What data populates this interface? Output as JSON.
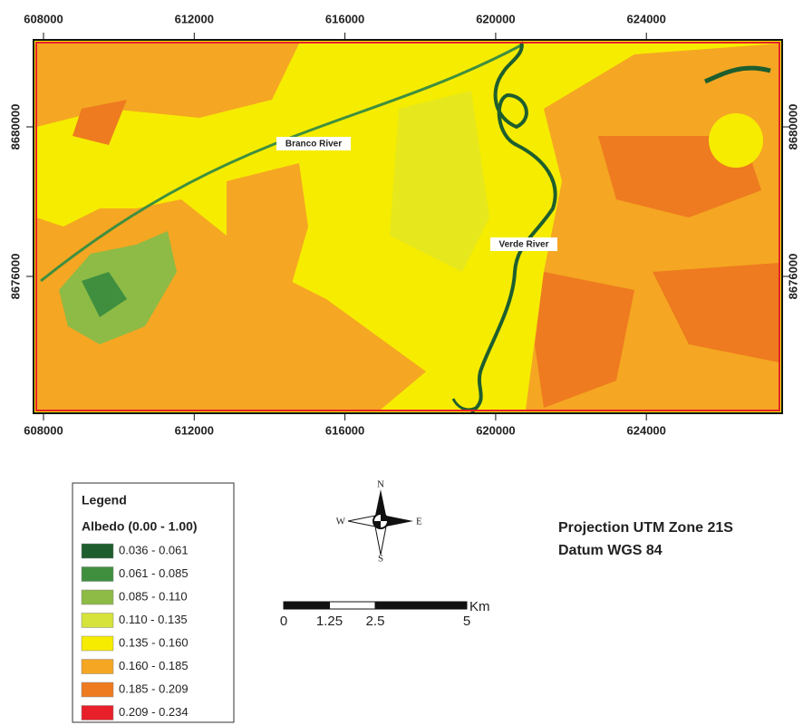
{
  "map": {
    "x_ticks": [
      608000,
      612000,
      616000,
      620000,
      624000
    ],
    "y_ticks": [
      8680000,
      8676000
    ],
    "labels": [
      "Branco River",
      "Verde River"
    ]
  },
  "legend": {
    "title": "Legend",
    "subtitle": "Albedo (0.00 - 1.00)",
    "items": [
      {
        "label": "0.036 - 0.061",
        "color": "#1e5e2e"
      },
      {
        "label": "0.061 - 0.085",
        "color": "#3f8f3f"
      },
      {
        "label": "0.085 - 0.110",
        "color": "#8dbb45"
      },
      {
        "label": "0.110 - 0.135",
        "color": "#d6e33a"
      },
      {
        "label": "0.135 - 0.160",
        "color": "#f6ec00"
      },
      {
        "label": "0.160 - 0.185",
        "color": "#f5a623"
      },
      {
        "label": "0.185 - 0.209",
        "color": "#ee7b1f"
      },
      {
        "label": "0.209 - 0.234",
        "color": "#e8202a"
      }
    ]
  },
  "compass": {
    "n": "N",
    "s": "S",
    "e": "E",
    "w": "W"
  },
  "scale_bar": {
    "ticks": [
      0,
      1.25,
      2.5,
      5
    ],
    "unit": "Km"
  },
  "projection": {
    "line1": "Projection UTM Zone 21S",
    "line2": "Datum WGS 84"
  }
}
